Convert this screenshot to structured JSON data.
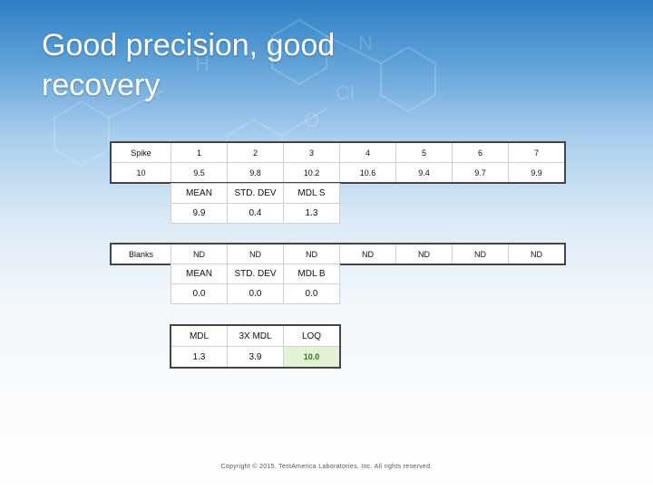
{
  "slide": {
    "title": "Good precision, good recovery",
    "footer": "Copyright © 2015. TestAmerica Laboratories, Inc. All rights reserved.",
    "highlight_color": "#2b7a1b"
  },
  "spike_table": {
    "header": [
      "Spike",
      "1",
      "2",
      "3",
      "4",
      "5",
      "6",
      "7"
    ],
    "row": [
      "10",
      "9.5",
      "9.8",
      "10.2",
      "10.6",
      "9.4",
      "9.7",
      "9.9"
    ]
  },
  "spike_stats": {
    "header": [
      "MEAN",
      "STD. DEV",
      "MDL S"
    ],
    "values": [
      "9.9",
      "0.4",
      "1.3"
    ]
  },
  "blanks_table": {
    "row": [
      "Blanks",
      "ND",
      "ND",
      "ND",
      "ND",
      "ND",
      "ND",
      "ND"
    ]
  },
  "blank_stats": {
    "header": [
      "MEAN",
      "STD. DEV",
      "MDL B"
    ],
    "values": [
      "0.0",
      "0.0",
      "0.0"
    ]
  },
  "mdl_table": {
    "header": [
      "MDL",
      "3X MDL",
      "LOQ"
    ],
    "values": [
      "1.3",
      "3.9",
      "10.0"
    ]
  }
}
